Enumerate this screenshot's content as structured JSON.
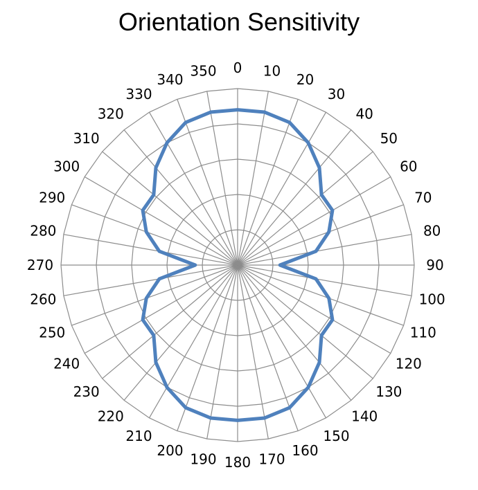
{
  "chart_data": {
    "type": "radar",
    "title": "Orientation Sensitivity",
    "angle_labels": [
      "0",
      "10",
      "20",
      "30",
      "40",
      "50",
      "60",
      "70",
      "80",
      "90",
      "100",
      "110",
      "120",
      "130",
      "140",
      "150",
      "160",
      "170",
      "180",
      "190",
      "200",
      "210",
      "220",
      "230",
      "240",
      "250",
      "260",
      "270",
      "280",
      "290",
      "300",
      "310",
      "320",
      "330",
      "340",
      "350"
    ],
    "r_range": [
      0,
      1
    ],
    "r_ticks": [
      0.2,
      0.4,
      0.6,
      0.8,
      1.0
    ],
    "grid": true,
    "series": [
      {
        "angles_deg": [
          0,
          10,
          20,
          30,
          40,
          50,
          60,
          70,
          80,
          90,
          100,
          110,
          120,
          130,
          140,
          150,
          160,
          170,
          180,
          190,
          200,
          210,
          220,
          230,
          240,
          250,
          260,
          270,
          280,
          290,
          300,
          310,
          320,
          330,
          340,
          350
        ],
        "values": [
          0.88,
          0.88,
          0.86,
          0.8,
          0.72,
          0.62,
          0.62,
          0.55,
          0.45,
          0.24,
          0.45,
          0.55,
          0.62,
          0.62,
          0.72,
          0.8,
          0.86,
          0.88,
          0.88,
          0.88,
          0.86,
          0.8,
          0.72,
          0.62,
          0.62,
          0.55,
          0.45,
          0.24,
          0.45,
          0.55,
          0.62,
          0.62,
          0.72,
          0.8,
          0.86,
          0.88
        ],
        "color": "#4f81bd"
      }
    ],
    "colors": {
      "grid": "#8c8c8c",
      "center": "#7f7f7f"
    }
  }
}
